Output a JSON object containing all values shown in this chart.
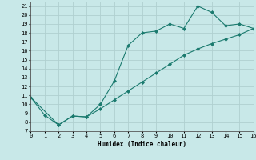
{
  "title": "",
  "xlabel": "Humidex (Indice chaleur)",
  "line1_x": [
    0,
    1,
    2,
    3,
    4,
    5,
    6,
    7,
    8,
    9,
    10,
    11,
    12,
    13,
    14,
    15,
    16
  ],
  "line1_y": [
    10.8,
    8.8,
    7.7,
    8.7,
    8.6,
    10.0,
    12.6,
    16.6,
    18.0,
    18.2,
    19.0,
    18.5,
    21.0,
    20.3,
    18.8,
    19.0,
    18.5
  ],
  "line2_x": [
    0,
    2,
    3,
    4,
    5,
    6,
    7,
    8,
    9,
    10,
    11,
    12,
    13,
    14,
    15,
    16
  ],
  "line2_y": [
    10.8,
    7.7,
    8.7,
    8.6,
    9.5,
    10.5,
    11.5,
    12.5,
    13.5,
    14.5,
    15.5,
    16.2,
    16.8,
    17.3,
    17.8,
    18.5
  ],
  "line_color": "#1a7a6e",
  "bg_color": "#c8e8e8",
  "grid_color": "#b0d0d0",
  "xlim": [
    0,
    16
  ],
  "ylim": [
    7,
    21.5
  ],
  "yticks": [
    7,
    8,
    9,
    10,
    11,
    12,
    13,
    14,
    15,
    16,
    17,
    18,
    19,
    20,
    21
  ],
  "xticks": [
    0,
    1,
    2,
    3,
    4,
    5,
    6,
    7,
    8,
    9,
    10,
    11,
    12,
    13,
    14,
    15,
    16
  ]
}
